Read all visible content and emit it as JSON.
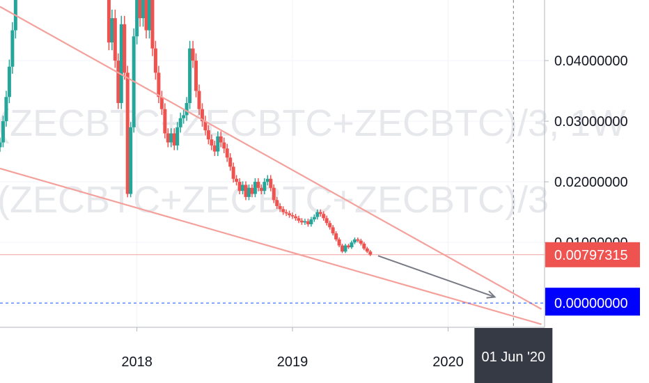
{
  "chart_data": {
    "type": "candlestick",
    "watermark": {
      "line1": "(ZECBTC+ZECBTC+ZECBTC)/3, 1W",
      "line2": "(ZECBTC+ZECBTC+ZECBTC)/3"
    },
    "y_axis": {
      "ylim": [
        -0.004,
        0.05
      ],
      "ticks": [
        {
          "value": 0.04,
          "label": "0.04000000"
        },
        {
          "value": 0.03,
          "label": "0.03000000"
        },
        {
          "value": 0.02,
          "label": "0.02000000"
        },
        {
          "value": 0.01,
          "label": "0.01000000"
        }
      ]
    },
    "x_axis": {
      "xlim": [
        2017.12,
        2020.62
      ],
      "ticks": [
        {
          "value": 2018.0,
          "label": "2018"
        },
        {
          "value": 2019.0,
          "label": "2019"
        },
        {
          "value": 2020.0,
          "label": "2020"
        }
      ]
    },
    "price_tag": {
      "value": 0.00797315,
      "label": "0.00797315",
      "color": "#ef5350"
    },
    "crosshair": {
      "y_value": 0.0,
      "y_label": "0.00000000",
      "y_color": "#0000ff",
      "x_value": 2020.42,
      "x_label": "01 Jun '20"
    },
    "trendlines": [
      {
        "name": "upper",
        "x": [
          2017.12,
          2020.6
        ],
        "y": [
          0.0489,
          -0.001
        ],
        "color": "#f4a09b"
      },
      {
        "name": "lower",
        "x": [
          2017.12,
          2020.6
        ],
        "y": [
          0.0222,
          -0.0035
        ],
        "color": "#f4a09b"
      }
    ],
    "arrow": {
      "x": [
        2019.55,
        2020.3
      ],
      "y": [
        0.0078,
        0.001
      ],
      "color": "#787b86"
    },
    "colors": {
      "up": "#26a69a",
      "down": "#ef5350"
    },
    "candles_close": [
      [
        2017.12,
        0.0265
      ],
      [
        2017.14,
        0.03
      ],
      [
        2017.16,
        0.034
      ],
      [
        2017.18,
        0.039
      ],
      [
        2017.2,
        0.045
      ],
      [
        2017.22,
        0.052
      ],
      [
        2017.24,
        0.056
      ],
      [
        2017.78,
        0.056
      ],
      [
        2017.8,
        0.052
      ],
      [
        2017.82,
        0.043
      ],
      [
        2017.84,
        0.047
      ],
      [
        2017.86,
        0.04
      ],
      [
        2017.88,
        0.033
      ],
      [
        2017.9,
        0.046
      ],
      [
        2017.92,
        0.038
      ],
      [
        2017.94,
        0.018
      ],
      [
        2017.96,
        0.029
      ],
      [
        2017.98,
        0.044
      ],
      [
        2018.0,
        0.052
      ],
      [
        2018.02,
        0.047
      ],
      [
        2018.04,
        0.053
      ],
      [
        2018.06,
        0.045
      ],
      [
        2018.08,
        0.05
      ],
      [
        2018.1,
        0.042
      ],
      [
        2018.12,
        0.038
      ],
      [
        2018.14,
        0.034
      ],
      [
        2018.16,
        0.032
      ],
      [
        2018.18,
        0.028
      ],
      [
        2018.2,
        0.0265
      ],
      [
        2018.22,
        0.028
      ],
      [
        2018.24,
        0.026
      ],
      [
        2018.26,
        0.029
      ],
      [
        2018.28,
        0.0305
      ],
      [
        2018.3,
        0.031
      ],
      [
        2018.32,
        0.033
      ],
      [
        2018.34,
        0.042
      ],
      [
        2018.36,
        0.04
      ],
      [
        2018.38,
        0.035
      ],
      [
        2018.4,
        0.032
      ],
      [
        2018.42,
        0.03
      ],
      [
        2018.44,
        0.0285
      ],
      [
        2018.46,
        0.027
      ],
      [
        2018.48,
        0.026
      ],
      [
        2018.5,
        0.025
      ],
      [
        2018.52,
        0.0275
      ],
      [
        2018.54,
        0.0265
      ],
      [
        2018.56,
        0.0255
      ],
      [
        2018.58,
        0.024
      ],
      [
        2018.6,
        0.0225
      ],
      [
        2018.62,
        0.0205
      ],
      [
        2018.64,
        0.02
      ],
      [
        2018.66,
        0.0185
      ],
      [
        2018.68,
        0.0195
      ],
      [
        2018.7,
        0.0175
      ],
      [
        2018.72,
        0.019
      ],
      [
        2018.74,
        0.018
      ],
      [
        2018.76,
        0.02
      ],
      [
        2018.78,
        0.019
      ],
      [
        2018.8,
        0.0185
      ],
      [
        2018.82,
        0.02
      ],
      [
        2018.84,
        0.0205
      ],
      [
        2018.86,
        0.019
      ],
      [
        2018.88,
        0.017
      ],
      [
        2018.9,
        0.016
      ],
      [
        2018.92,
        0.0155
      ],
      [
        2018.94,
        0.015
      ],
      [
        2018.96,
        0.0148
      ],
      [
        2018.98,
        0.0145
      ],
      [
        2019.0,
        0.0143
      ],
      [
        2019.02,
        0.014
      ],
      [
        2019.04,
        0.0136
      ],
      [
        2019.06,
        0.0133
      ],
      [
        2019.08,
        0.0135
      ],
      [
        2019.1,
        0.013
      ],
      [
        2019.12,
        0.0138
      ],
      [
        2019.14,
        0.0142
      ],
      [
        2019.16,
        0.015
      ],
      [
        2019.18,
        0.0147
      ],
      [
        2019.2,
        0.014
      ],
      [
        2019.22,
        0.0132
      ],
      [
        2019.24,
        0.0125
      ],
      [
        2019.26,
        0.0115
      ],
      [
        2019.28,
        0.0105
      ],
      [
        2019.3,
        0.0095
      ],
      [
        2019.32,
        0.0085
      ],
      [
        2019.34,
        0.0095
      ],
      [
        2019.36,
        0.0092
      ],
      [
        2019.38,
        0.01
      ],
      [
        2019.4,
        0.0105
      ],
      [
        2019.42,
        0.0103
      ],
      [
        2019.44,
        0.0098
      ],
      [
        2019.46,
        0.009
      ],
      [
        2019.48,
        0.0085
      ],
      [
        2019.5,
        0.008
      ]
    ]
  }
}
